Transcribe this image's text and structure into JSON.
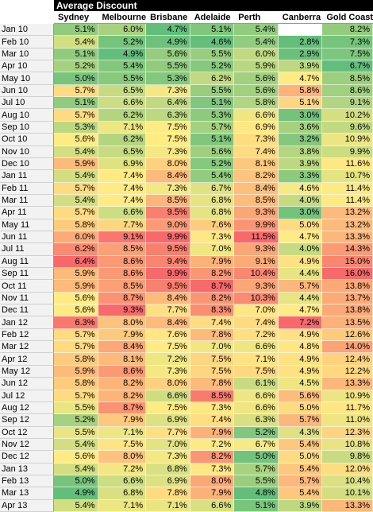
{
  "title": "Average Discount",
  "columns": [
    "Sydney",
    "Melbourne",
    "Brisbane",
    "Adelaide",
    "Perth",
    "Canberra",
    "Gold Coast"
  ],
  "rows": [
    {
      "label": "Jan 10",
      "cells": [
        "5.1%",
        "6.0%",
        "4.7%",
        "5.1%",
        "5.4%",
        null,
        "8.2%"
      ]
    },
    {
      "label": "Feb 10",
      "cells": [
        "5.4%",
        "5.2%",
        "4.9%",
        "4.6%",
        "5.4%",
        "2.8%",
        "7.3%"
      ]
    },
    {
      "label": "Mar 10",
      "cells": [
        "5.1%",
        "4.9%",
        "5.6%",
        "5.5%",
        "6.0%",
        "2.9%",
        "7.5%"
      ]
    },
    {
      "label": "Apr 10",
      "cells": [
        "5.2%",
        "5.4%",
        "5.5%",
        "5.2%",
        "5.9%",
        "3.9%",
        "6.7%"
      ]
    },
    {
      "label": "May 10",
      "cells": [
        "5.0%",
        "5.5%",
        "5.3%",
        "6.2%",
        "5.6%",
        "4.7%",
        "8.5%"
      ]
    },
    {
      "label": "Jun 10",
      "cells": [
        "5.7%",
        "6.5%",
        "7.3%",
        "5.5%",
        "5.6%",
        "5.8%",
        "8.6%"
      ]
    },
    {
      "label": "Jul 10",
      "cells": [
        "5.1%",
        "6.6%",
        "6.4%",
        "5.1%",
        "5.8%",
        "5.1%",
        "9.1%"
      ]
    },
    {
      "label": "Aug 10",
      "cells": [
        "5.7%",
        "6.2%",
        "6.3%",
        "5.3%",
        "6.6%",
        "3.0%",
        "10.2%"
      ]
    },
    {
      "label": "Sep 10",
      "cells": [
        "5.3%",
        "7.1%",
        "7.5%",
        "5.7%",
        "6.9%",
        "3.6%",
        "9.6%"
      ]
    },
    {
      "label": "Oct 10",
      "cells": [
        "5.6%",
        "6.2%",
        "7.5%",
        "5.1%",
        "7.3%",
        "3.2%",
        "10.9%"
      ]
    },
    {
      "label": "Nov 10",
      "cells": [
        "5.4%",
        "6.5%",
        "7.3%",
        "5.6%",
        "7.4%",
        "3.8%",
        "9.9%"
      ]
    },
    {
      "label": "Dec 10",
      "cells": [
        "5.9%",
        "6.9%",
        "8.0%",
        "5.2%",
        "8.1%",
        "3.9%",
        "11.6%"
      ]
    },
    {
      "label": "Jan 11",
      "cells": [
        "5.4%",
        "7.4%",
        "8.4%",
        "5.4%",
        "8.2%",
        "3.3%",
        "10.7%"
      ]
    },
    {
      "label": "Feb 11",
      "cells": [
        "5.7%",
        "7.4%",
        "7.3%",
        "6.7%",
        "8.4%",
        "4.6%",
        "11.4%"
      ]
    },
    {
      "label": "Mar 11",
      "cells": [
        "5.4%",
        "7.4%",
        "8.5%",
        "6.8%",
        "8.5%",
        "4.0%",
        "11.4%"
      ]
    },
    {
      "label": "Apr 11",
      "cells": [
        "5.7%",
        "6.6%",
        "9.5%",
        "6.8%",
        "9.3%",
        "3.0%",
        "13.2%"
      ]
    },
    {
      "label": "May 11",
      "cells": [
        "5.8%",
        "7.7%",
        "9.0%",
        "7.6%",
        "9.9%",
        "5.0%",
        "13.2%"
      ]
    },
    {
      "label": "Jun 11",
      "cells": [
        "6.0%",
        "9.1%",
        "9.9%",
        "7.3%",
        "11.5%",
        "4.7%",
        "13.3%"
      ]
    },
    {
      "label": "Jul 11",
      "cells": [
        "6.2%",
        "8.5%",
        "9.5%",
        "7.0%",
        "9.3%",
        "4.0%",
        "14.3%"
      ]
    },
    {
      "label": "Aug 11",
      "cells": [
        "6.4%",
        "8.6%",
        "9.4%",
        "7.9%",
        "9.1%",
        "4.9%",
        "15.0%"
      ]
    },
    {
      "label": "Sep 11",
      "cells": [
        "5.9%",
        "8.6%",
        "9.9%",
        "8.2%",
        "10.4%",
        "4.4%",
        "16.0%"
      ]
    },
    {
      "label": "Oct 11",
      "cells": [
        "5.9%",
        "8.5%",
        "9.5%",
        "8.7%",
        "9.3%",
        "5.7%",
        "13.8%"
      ]
    },
    {
      "label": "Nov 11",
      "cells": [
        "5.6%",
        "8.7%",
        "8.4%",
        "8.2%",
        "10.3%",
        "4.4%",
        "13.7%"
      ]
    },
    {
      "label": "Dec 11",
      "cells": [
        "5.6%",
        "9.3%",
        "7.7%",
        "8.3%",
        "7.0%",
        "4.7%",
        "13.8%"
      ]
    },
    {
      "label": "Jan 12",
      "cells": [
        "6.3%",
        "8.0%",
        "8.4%",
        "7.4%",
        "7.4%",
        "7.2%",
        "13.5%"
      ]
    },
    {
      "label": "Feb 12",
      "cells": [
        "5.7%",
        "7.9%",
        "7.6%",
        "7.8%",
        "7.2%",
        "4.9%",
        "12.6%"
      ]
    },
    {
      "label": "Mar 12",
      "cells": [
        "5.7%",
        "8.4%",
        "7.5%",
        "7.0%",
        "6.6%",
        "4.8%",
        "14.0%"
      ]
    },
    {
      "label": "Apr 12",
      "cells": [
        "5.8%",
        "8.1%",
        "7.2%",
        "7.5%",
        "7.1%",
        "4.9%",
        "12.4%"
      ]
    },
    {
      "label": "May 12",
      "cells": [
        "5.9%",
        "8.6%",
        "7.3%",
        "7.5%",
        "7.5%",
        "4.9%",
        "12.2%"
      ]
    },
    {
      "label": "Jun 12",
      "cells": [
        "5.8%",
        "8.2%",
        "8.0%",
        "7.8%",
        "6.1%",
        "4.5%",
        "13.3%"
      ]
    },
    {
      "label": "Jul 12",
      "cells": [
        "5.7%",
        "8.2%",
        "6.6%",
        "8.5%",
        "6.6%",
        "5.6%",
        "10.9%"
      ]
    },
    {
      "label": "Aug 12",
      "cells": [
        "5.5%",
        "8.7%",
        "7.5%",
        "7.3%",
        "6.6%",
        "5.0%",
        "11.7%"
      ]
    },
    {
      "label": "Sep 12",
      "cells": [
        "5.2%",
        "7.9%",
        "6.9%",
        "7.4%",
        "6.3%",
        "5.7%",
        "11.0%"
      ]
    },
    {
      "label": "Oct 12",
      "cells": [
        "5.5%",
        "7.1%",
        "7.7%",
        "7.9%",
        "5.2%",
        "4.3%",
        "12.3%"
      ]
    },
    {
      "label": "Nov 12",
      "cells": [
        "5.4%",
        "7.5%",
        "7.0%",
        "7.2%",
        "6.7%",
        "5.4%",
        "10.8%"
      ]
    },
    {
      "label": "Dec 12",
      "cells": [
        "5.6%",
        "8.0%",
        "7.3%",
        "8.2%",
        "5.0%",
        "5.0%",
        "9.8%"
      ]
    },
    {
      "label": "Jan 13",
      "cells": [
        "5.4%",
        "7.2%",
        "6.8%",
        "7.3%",
        "5.7%",
        "5.4%",
        "12.0%"
      ]
    },
    {
      "label": "Feb 13",
      "cells": [
        "5.0%",
        "6.6%",
        "6.9%",
        "8.0%",
        "5.5%",
        "5.7%",
        "10.4%"
      ]
    },
    {
      "label": "Mar 13",
      "cells": [
        "4.9%",
        "6.8%",
        "7.8%",
        "7.9%",
        "4.8%",
        "5.4%",
        "10.1%"
      ]
    },
    {
      "label": "Apr 13",
      "cells": [
        "5.4%",
        "7.1%",
        "7.1%",
        "6.6%",
        "5.1%",
        "3.9%",
        "13.3%"
      ]
    }
  ]
}
